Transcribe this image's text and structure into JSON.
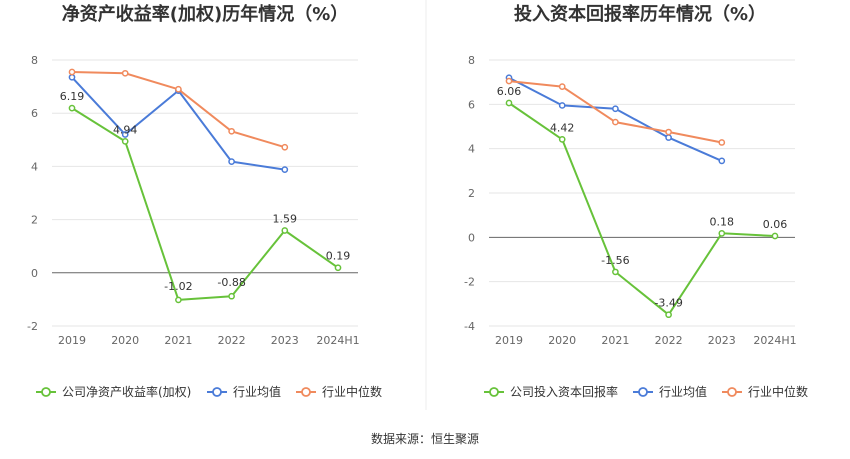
{
  "source": "数据来源：恒生聚源",
  "colors": {
    "company": "#67c23a",
    "avg": "#4a7bd8",
    "median": "#f08a5d"
  },
  "chart_data": [
    {
      "type": "line",
      "title": "净资产收益率(加权)历年情况（%）",
      "categories": [
        "2019",
        "2020",
        "2021",
        "2022",
        "2023",
        "2024H1"
      ],
      "ylim": [
        -2,
        8
      ],
      "yticks": [
        "-2",
        "0",
        "2",
        "4",
        "6",
        "8"
      ],
      "grid": true,
      "legend_position": "bottom",
      "series": [
        {
          "name": "公司净资产收益率(加权)",
          "key": "company",
          "values": [
            6.19,
            4.94,
            -1.02,
            -0.88,
            1.59,
            0.19
          ],
          "labels": [
            "6.19",
            "4.94",
            "-1.02",
            "-0.88",
            "1.59",
            "0.19"
          ]
        },
        {
          "name": "行业均值",
          "key": "avg",
          "values": [
            7.35,
            5.2,
            6.85,
            4.18,
            3.88,
            null
          ]
        },
        {
          "name": "行业中位数",
          "key": "median",
          "values": [
            7.55,
            7.5,
            6.9,
            5.32,
            4.72,
            null
          ]
        }
      ]
    },
    {
      "type": "line",
      "title": "投入资本回报率历年情况（%）",
      "categories": [
        "2019",
        "2020",
        "2021",
        "2022",
        "2023",
        "2024H1"
      ],
      "ylim": [
        -4,
        8
      ],
      "yticks": [
        "-4",
        "-2",
        "0",
        "2",
        "4",
        "6",
        "8"
      ],
      "grid": true,
      "legend_position": "bottom",
      "series": [
        {
          "name": "公司投入资本回报率",
          "key": "company",
          "values": [
            6.06,
            4.42,
            -1.56,
            -3.49,
            0.18,
            0.06
          ],
          "labels": [
            "6.06",
            "4.42",
            "-1.56",
            "-3.49",
            "0.18",
            "0.06"
          ]
        },
        {
          "name": "行业均值",
          "key": "avg",
          "values": [
            7.2,
            5.95,
            5.8,
            4.5,
            3.45,
            null
          ]
        },
        {
          "name": "行业中位数",
          "key": "median",
          "values": [
            7.05,
            6.8,
            5.2,
            4.75,
            4.28,
            null
          ]
        }
      ]
    }
  ]
}
